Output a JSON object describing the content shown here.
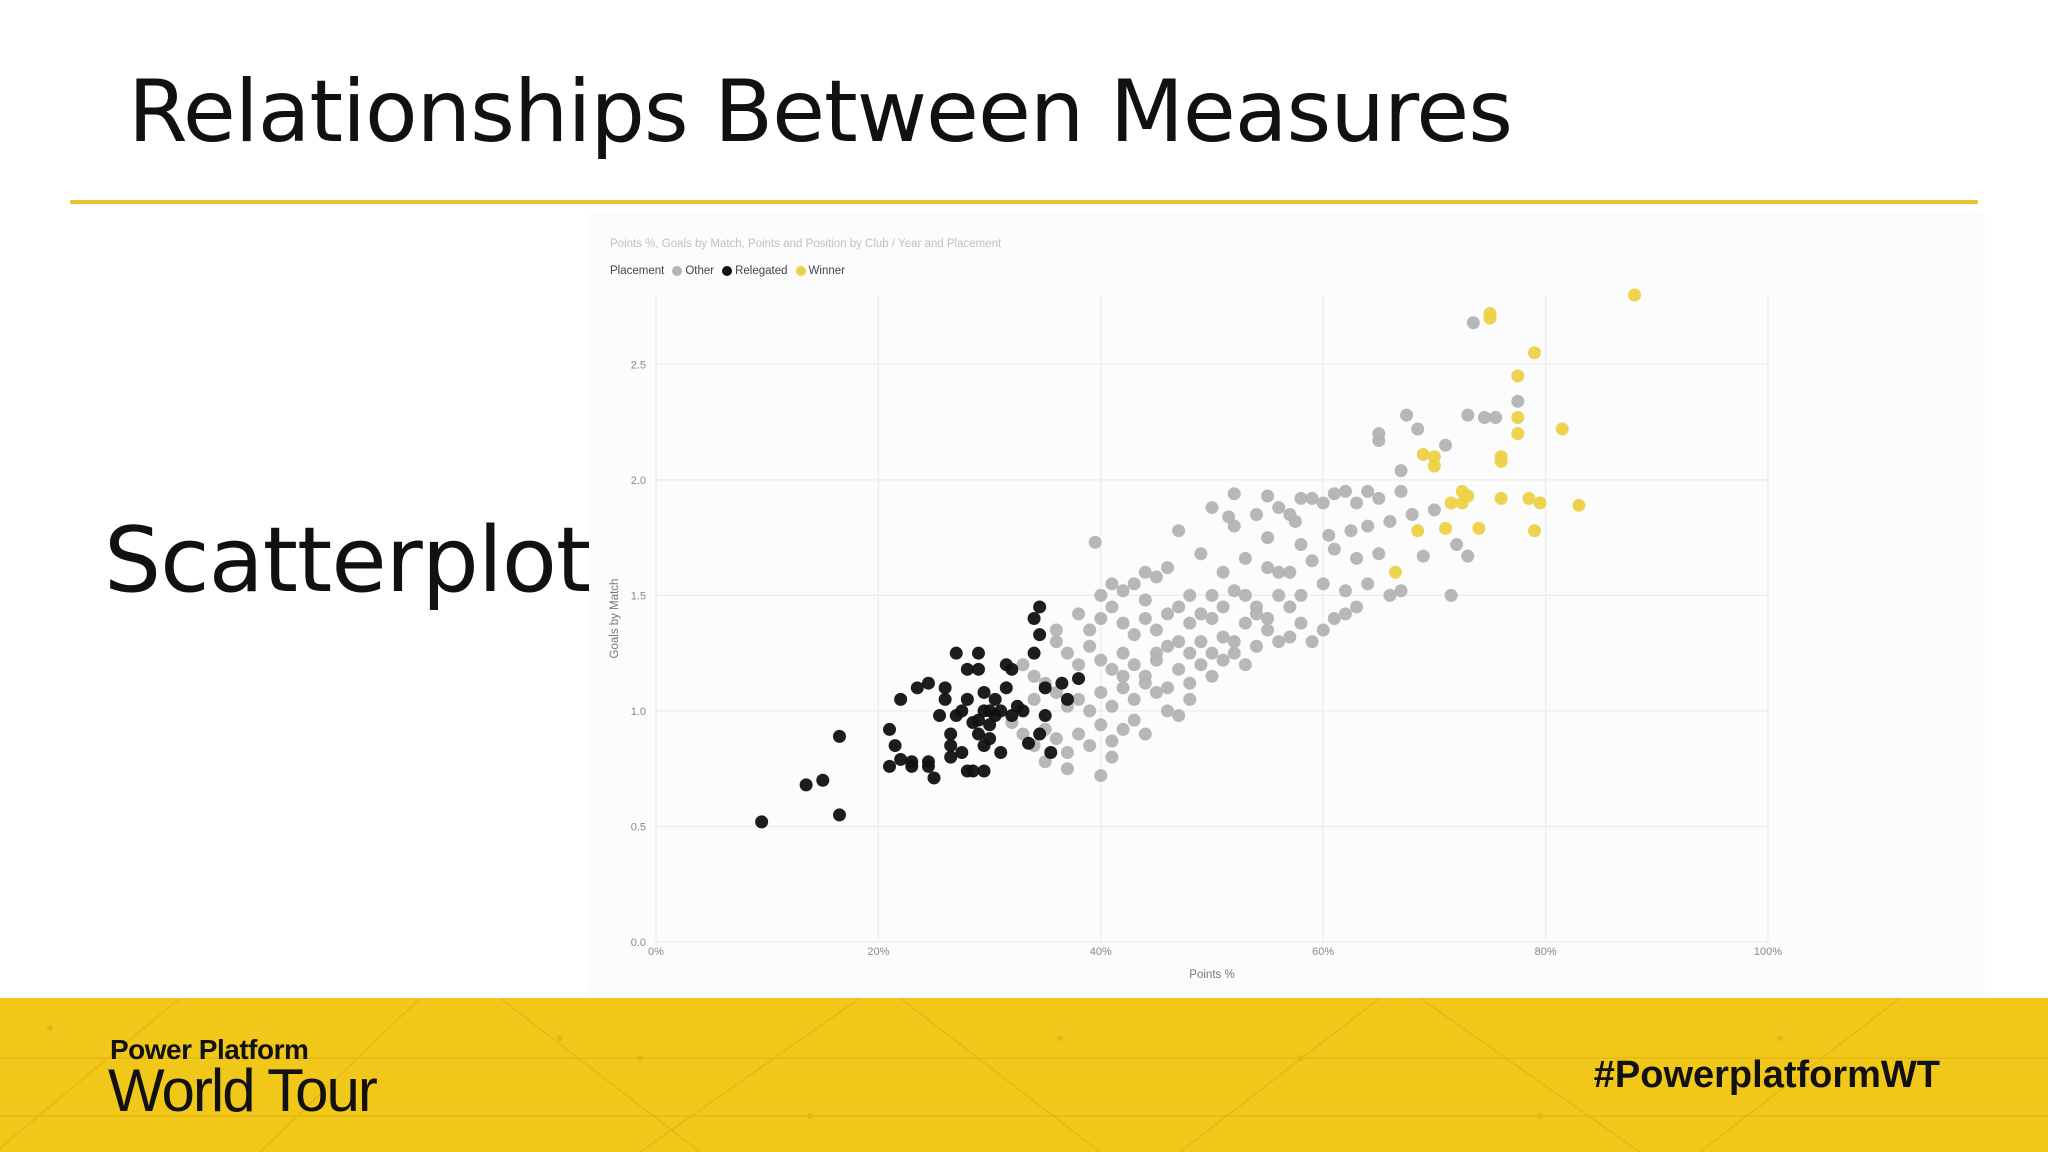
{
  "slide": {
    "title": "Relationships Between Measures",
    "side_label": "Scatterplot"
  },
  "footer": {
    "brand_line1": "Power Platform",
    "brand_line2": "World Tour",
    "hashtag": "#PowerplatformWT"
  },
  "colors": {
    "accent": "#e8c52a",
    "footer_bg": "#f1c71a",
    "other": "#b3b3b3",
    "relegated": "#111111",
    "winner": "#ecd146"
  },
  "chart_data": {
    "type": "scatter",
    "title": "Points %, Goals by Match, Points and Position by Club / Year and Placement",
    "legend": {
      "title": "Placement",
      "position": "top-left",
      "entries": [
        "Other",
        "Relegated",
        "Winner"
      ]
    },
    "xlabel": "Points %",
    "ylabel": "Goals by Match",
    "xlim": [
      0,
      100
    ],
    "ylim": [
      0,
      2.8
    ],
    "x_ticks": [
      "0%",
      "20%",
      "40%",
      "60%",
      "80%",
      "100%"
    ],
    "y_ticks": [
      "0.0",
      "0.5",
      "1.0",
      "1.5",
      "2.0",
      "2.5"
    ],
    "grid": true,
    "series": [
      {
        "name": "Relegated",
        "color": "#111111",
        "points": [
          [
            9.5,
            0.52
          ],
          [
            13.5,
            0.68
          ],
          [
            15,
            0.7
          ],
          [
            16.5,
            0.55
          ],
          [
            16.5,
            0.89
          ],
          [
            21,
            0.92
          ],
          [
            21,
            0.76
          ],
          [
            21.5,
            0.85
          ],
          [
            22,
            0.79
          ],
          [
            22,
            1.05
          ],
          [
            23,
            0.78
          ],
          [
            23,
            0.76
          ],
          [
            23.5,
            1.1
          ],
          [
            24.5,
            1.12
          ],
          [
            24.5,
            0.76
          ],
          [
            24.5,
            0.78
          ],
          [
            25,
            0.71
          ],
          [
            26,
            1.05
          ],
          [
            26,
            1.1
          ],
          [
            26.5,
            0.85
          ],
          [
            26.5,
            0.9
          ],
          [
            26.5,
            0.8
          ],
          [
            27,
            0.98
          ],
          [
            27,
            1.25
          ],
          [
            27.5,
            1.0
          ],
          [
            27.5,
            0.82
          ],
          [
            28,
            0.74
          ],
          [
            28,
            1.05
          ],
          [
            28.5,
            0.95
          ],
          [
            28.5,
            0.74
          ],
          [
            29,
            1.25
          ],
          [
            29,
            1.18
          ],
          [
            29,
            0.96
          ],
          [
            29,
            0.9
          ],
          [
            29.5,
            1.08
          ],
          [
            29.5,
            1.0
          ],
          [
            29.5,
            0.85
          ],
          [
            29.5,
            0.74
          ],
          [
            30,
            1.0
          ],
          [
            30,
            0.94
          ],
          [
            30,
            0.88
          ],
          [
            30.5,
            1.05
          ],
          [
            30.5,
            0.98
          ],
          [
            31,
            0.82
          ],
          [
            31,
            1.0
          ],
          [
            31.5,
            1.1
          ],
          [
            31.5,
            1.2
          ],
          [
            32,
            1.18
          ],
          [
            32,
            0.98
          ],
          [
            32.5,
            1.02
          ],
          [
            33,
            1.0
          ],
          [
            33.5,
            0.86
          ],
          [
            34,
            1.4
          ],
          [
            34,
            1.25
          ],
          [
            34.5,
            1.45
          ],
          [
            34.5,
            0.9
          ],
          [
            34.5,
            1.33
          ],
          [
            35,
            1.1
          ],
          [
            35,
            0.98
          ],
          [
            35.5,
            0.82
          ],
          [
            36.5,
            1.12
          ],
          [
            37,
            1.05
          ],
          [
            38,
            1.14
          ],
          [
            28,
            1.18
          ],
          [
            25.5,
            0.98
          ]
        ]
      },
      {
        "name": "Winner",
        "color": "#ecd146",
        "points": [
          [
            88,
            2.8
          ],
          [
            75,
            2.72
          ],
          [
            75,
            2.7
          ],
          [
            79,
            2.55
          ],
          [
            77.5,
            2.45
          ],
          [
            77.5,
            2.27
          ],
          [
            77.5,
            2.2
          ],
          [
            81.5,
            2.22
          ],
          [
            76,
            2.08
          ],
          [
            76,
            2.1
          ],
          [
            69,
            2.11
          ],
          [
            70,
            2.06
          ],
          [
            70,
            2.1
          ],
          [
            71.5,
            1.9
          ],
          [
            72.5,
            1.95
          ],
          [
            72.5,
            1.9
          ],
          [
            73,
            1.93
          ],
          [
            76,
            1.92
          ],
          [
            78.5,
            1.92
          ],
          [
            79.5,
            1.9
          ],
          [
            83,
            1.89
          ],
          [
            68.5,
            1.78
          ],
          [
            71,
            1.79
          ],
          [
            79,
            1.78
          ],
          [
            66.5,
            1.6
          ],
          [
            74,
            1.79
          ]
        ]
      },
      {
        "name": "Other",
        "color": "#b3b3b3",
        "points": [
          [
            73.5,
            2.68
          ],
          [
            77.5,
            2.34
          ],
          [
            73,
            2.28
          ],
          [
            75.5,
            2.27
          ],
          [
            74.5,
            2.27
          ],
          [
            67.5,
            2.28
          ],
          [
            68.5,
            2.22
          ],
          [
            65,
            2.17
          ],
          [
            65,
            2.2
          ],
          [
            71,
            2.15
          ],
          [
            67,
            2.04
          ],
          [
            67,
            1.95
          ],
          [
            65,
            1.92
          ],
          [
            64,
            1.95
          ],
          [
            62,
            1.95
          ],
          [
            61,
            1.94
          ],
          [
            59,
            1.92
          ],
          [
            58,
            1.92
          ],
          [
            60,
            1.9
          ],
          [
            57,
            1.85
          ],
          [
            56,
            1.88
          ],
          [
            55,
            1.93
          ],
          [
            54,
            1.85
          ],
          [
            52,
            1.94
          ],
          [
            51.5,
            1.84
          ],
          [
            50,
            1.88
          ],
          [
            52,
            1.8
          ],
          [
            55,
            1.75
          ],
          [
            57.5,
            1.82
          ],
          [
            63,
            1.9
          ],
          [
            58,
            1.72
          ],
          [
            60.5,
            1.76
          ],
          [
            62.5,
            1.78
          ],
          [
            64,
            1.8
          ],
          [
            66,
            1.82
          ],
          [
            68,
            1.85
          ],
          [
            70,
            1.87
          ],
          [
            72,
            1.72
          ],
          [
            73,
            1.67
          ],
          [
            69,
            1.67
          ],
          [
            65,
            1.68
          ],
          [
            63,
            1.66
          ],
          [
            61,
            1.7
          ],
          [
            59,
            1.65
          ],
          [
            57,
            1.6
          ],
          [
            55,
            1.62
          ],
          [
            53,
            1.66
          ],
          [
            51,
            1.6
          ],
          [
            49,
            1.68
          ],
          [
            47,
            1.78
          ],
          [
            46,
            1.62
          ],
          [
            44,
            1.6
          ],
          [
            42,
            1.52
          ],
          [
            43,
            1.55
          ],
          [
            45,
            1.58
          ],
          [
            40,
            1.5
          ],
          [
            41,
            1.55
          ],
          [
            39.5,
            1.73
          ],
          [
            48,
            1.5
          ],
          [
            50,
            1.5
          ],
          [
            52,
            1.52
          ],
          [
            54,
            1.45
          ],
          [
            56,
            1.5
          ],
          [
            58,
            1.5
          ],
          [
            60,
            1.55
          ],
          [
            62,
            1.52
          ],
          [
            64,
            1.55
          ],
          [
            66,
            1.5
          ],
          [
            67,
            1.52
          ],
          [
            71.5,
            1.5
          ],
          [
            38,
            1.42
          ],
          [
            39,
            1.35
          ],
          [
            40,
            1.4
          ],
          [
            41,
            1.45
          ],
          [
            42,
            1.38
          ],
          [
            43,
            1.33
          ],
          [
            44,
            1.4
          ],
          [
            45,
            1.35
          ],
          [
            46,
            1.42
          ],
          [
            47,
            1.3
          ],
          [
            48,
            1.38
          ],
          [
            49,
            1.3
          ],
          [
            50,
            1.4
          ],
          [
            51,
            1.32
          ],
          [
            52,
            1.3
          ],
          [
            53,
            1.38
          ],
          [
            54,
            1.42
          ],
          [
            55,
            1.35
          ],
          [
            56,
            1.3
          ],
          [
            57,
            1.32
          ],
          [
            58,
            1.38
          ],
          [
            59,
            1.3
          ],
          [
            60,
            1.35
          ],
          [
            61,
            1.4
          ],
          [
            62,
            1.42
          ],
          [
            63,
            1.45
          ],
          [
            36,
            1.3
          ],
          [
            37,
            1.25
          ],
          [
            38,
            1.2
          ],
          [
            39,
            1.28
          ],
          [
            40,
            1.22
          ],
          [
            41,
            1.18
          ],
          [
            42,
            1.25
          ],
          [
            43,
            1.2
          ],
          [
            44,
            1.15
          ],
          [
            45,
            1.22
          ],
          [
            46,
            1.1
          ],
          [
            47,
            1.18
          ],
          [
            48,
            1.12
          ],
          [
            49,
            1.2
          ],
          [
            50,
            1.15
          ],
          [
            51,
            1.22
          ],
          [
            52,
            1.25
          ],
          [
            53,
            1.2
          ],
          [
            54,
            1.28
          ],
          [
            33,
            1.2
          ],
          [
            34,
            1.15
          ],
          [
            35,
            1.12
          ],
          [
            36,
            1.08
          ],
          [
            37,
            1.02
          ],
          [
            38,
            1.05
          ],
          [
            39,
            1.0
          ],
          [
            40,
            1.08
          ],
          [
            41,
            1.02
          ],
          [
            42,
            1.1
          ],
          [
            43,
            1.05
          ],
          [
            44,
            1.12
          ],
          [
            45,
            1.08
          ],
          [
            46,
            1.0
          ],
          [
            47,
            0.98
          ],
          [
            48,
            1.05
          ],
          [
            32,
            0.95
          ],
          [
            33,
            0.9
          ],
          [
            34,
            0.85
          ],
          [
            35,
            0.92
          ],
          [
            36,
            0.88
          ],
          [
            37,
            0.82
          ],
          [
            38,
            0.9
          ],
          [
            39,
            0.85
          ],
          [
            40,
            0.94
          ],
          [
            41,
            0.87
          ],
          [
            42,
            0.92
          ],
          [
            43,
            0.96
          ],
          [
            44,
            0.9
          ],
          [
            35,
            0.78
          ],
          [
            37,
            0.75
          ],
          [
            40,
            0.72
          ],
          [
            41,
            0.8
          ],
          [
            36,
            1.35
          ],
          [
            34,
            1.05
          ],
          [
            46,
            1.28
          ],
          [
            47,
            1.45
          ],
          [
            48,
            1.25
          ],
          [
            51,
            1.45
          ],
          [
            53,
            1.5
          ],
          [
            56,
            1.6
          ],
          [
            44,
            1.48
          ],
          [
            49,
            1.42
          ],
          [
            45,
            1.25
          ],
          [
            42,
            1.15
          ],
          [
            50,
            1.25
          ],
          [
            55,
            1.4
          ],
          [
            57,
            1.45
          ]
        ]
      }
    ]
  }
}
